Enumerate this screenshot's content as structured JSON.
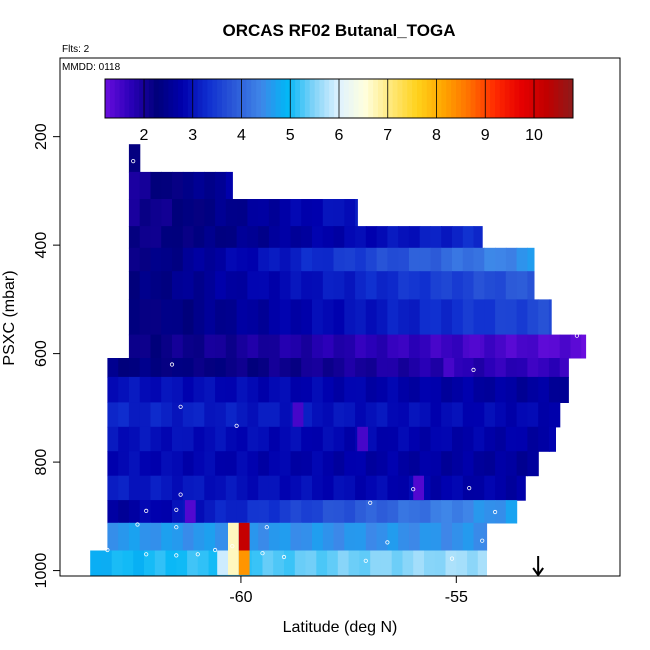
{
  "chart_data": {
    "type": "heatmap",
    "title": "ORCAS RF02 Butanal_TOGA",
    "flights_label": "Flts: 2",
    "date_label": "MMDD: 0118",
    "xlabel": "Latitude (deg N)",
    "ylabel": "PSXC (mbar)",
    "xlim": [
      -64.2,
      -51.2
    ],
    "ylim": [
      1010,
      55
    ],
    "x_ticks": [
      -60,
      -55
    ],
    "y_ticks": [
      200,
      400,
      600,
      800,
      1000
    ],
    "colorbar": {
      "ticks": [
        2,
        3,
        4,
        5,
        6,
        7,
        8,
        9,
        10
      ],
      "range": [
        1.2,
        10.8
      ],
      "colors": [
        "#6a0dde",
        "#2a00b8",
        "#00007a",
        "#0000ae",
        "#1030d0",
        "#2c5ad8",
        "#3f86e8",
        "#00b6f6",
        "#7ed2f8",
        "#dff2ff",
        "#ffffde",
        "#ffe87a",
        "#ffd21c",
        "#ffa600",
        "#ff7000",
        "#ff2a00",
        "#e60000",
        "#c00000",
        "#8e1a1a"
      ]
    },
    "grid": {
      "lat_start": -62.6,
      "lat_end": -52.0,
      "lat_step": 0.25,
      "pressure_bands": [
        {
          "p_top": 214,
          "p_bot": 265,
          "lat_min": -62.6,
          "lat_max": -62.35,
          "v0": 2.1,
          "v1": 2.1
        },
        {
          "p_top": 265,
          "p_bot": 315,
          "lat_min": -62.6,
          "lat_max": -60.2,
          "v0": 2.0,
          "v1": 2.7
        },
        {
          "p_top": 315,
          "p_bot": 365,
          "lat_min": -62.6,
          "lat_max": -57.3,
          "v0": 2.0,
          "v1": 3.1
        },
        {
          "p_top": 365,
          "p_bot": 405,
          "lat_min": -62.6,
          "lat_max": -54.4,
          "v0": 2.1,
          "v1": 3.3
        },
        {
          "p_top": 405,
          "p_bot": 448,
          "lat_min": -62.6,
          "lat_max": -53.2,
          "v0": 2.2,
          "v1": 4.6
        },
        {
          "p_top": 448,
          "p_bot": 500,
          "lat_min": -62.6,
          "lat_max": -53.2,
          "v0": 2.3,
          "v1": 3.9
        },
        {
          "p_top": 500,
          "p_bot": 565,
          "lat_min": -62.6,
          "lat_max": -52.8,
          "v0": 2.2,
          "v1": 3.7
        },
        {
          "p_top": 565,
          "p_bot": 608,
          "lat_min": -62.6,
          "lat_max": -52.0,
          "v0": 2.2,
          "v1": 1.3
        },
        {
          "p_top": 608,
          "p_bot": 643,
          "lat_min": -63.1,
          "lat_max": -52.4,
          "v0": 2.4,
          "v1": 1.6
        },
        {
          "p_top": 643,
          "p_bot": 690,
          "lat_min": -63.1,
          "lat_max": -52.4,
          "v0": 3.0,
          "v1": 2.6
        },
        {
          "p_top": 690,
          "p_bot": 735,
          "lat_min": -63.1,
          "lat_max": -52.6,
          "v0": 3.2,
          "v1": 2.8
        },
        {
          "p_top": 735,
          "p_bot": 780,
          "lat_min": -63.1,
          "lat_max": -52.7,
          "v0": 3.0,
          "v1": 2.7
        },
        {
          "p_top": 780,
          "p_bot": 825,
          "lat_min": -63.1,
          "lat_max": -53.1,
          "v0": 2.9,
          "v1": 2.6
        },
        {
          "p_top": 825,
          "p_bot": 870,
          "lat_min": -63.1,
          "lat_max": -53.4,
          "v0": 3.1,
          "v1": 2.7
        },
        {
          "p_top": 870,
          "p_bot": 912,
          "lat_min": -63.1,
          "lat_max": -53.6,
          "v0": 2.6,
          "v1": 4.7
        },
        {
          "p_top": 912,
          "p_bot": 963,
          "lat_min": -63.1,
          "lat_max": -54.3,
          "v0": 4.6,
          "v1": 4.5
        },
        {
          "p_top": 963,
          "p_bot": 1008,
          "lat_min": -63.5,
          "lat_max": -54.3,
          "v0": 4.9,
          "v1": 5.7
        }
      ],
      "highlights": [
        {
          "lat": -60.3,
          "p_top": 912,
          "p_bot": 1008,
          "value": 6.7
        },
        {
          "lat": -60.05,
          "p_top": 963,
          "p_bot": 1008,
          "value": 8.3
        },
        {
          "lat": -60.05,
          "p_top": 912,
          "p_bot": 963,
          "value": 10.2
        },
        {
          "lat": -60.55,
          "p_top": 963,
          "p_bot": 1008,
          "value": 5.9
        },
        {
          "lat": -61.3,
          "p_top": 870,
          "p_bot": 912,
          "value": 1.4
        },
        {
          "lat": -54.7,
          "p_top": 565,
          "p_bot": 608,
          "value": 1.4
        },
        {
          "lat": -55.3,
          "p_top": 608,
          "p_bot": 643,
          "value": 1.5
        },
        {
          "lat": -56.0,
          "p_top": 825,
          "p_bot": 870,
          "value": 1.4
        },
        {
          "lat": -57.3,
          "p_top": 735,
          "p_bot": 780,
          "value": 1.5
        },
        {
          "lat": -58.8,
          "p_top": 690,
          "p_bot": 735,
          "value": 1.5
        }
      ]
    },
    "samples": [
      {
        "lat": -62.5,
        "p": 245
      },
      {
        "lat": -54.3,
        "p": 398
      },
      {
        "lat": -52.8,
        "p": 448
      },
      {
        "lat": -52.2,
        "p": 567
      },
      {
        "lat": -54.6,
        "p": 630
      },
      {
        "lat": -52.3,
        "p": 703
      },
      {
        "lat": -61.6,
        "p": 620
      },
      {
        "lat": -61.4,
        "p": 698
      },
      {
        "lat": -60.1,
        "p": 733
      },
      {
        "lat": -62.2,
        "p": 890
      },
      {
        "lat": -61.5,
        "p": 888
      },
      {
        "lat": -61.4,
        "p": 860
      },
      {
        "lat": -57.0,
        "p": 875
      },
      {
        "lat": -56.0,
        "p": 850
      },
      {
        "lat": -54.7,
        "p": 848
      },
      {
        "lat": -54.1,
        "p": 892
      },
      {
        "lat": -54.4,
        "p": 945
      },
      {
        "lat": -62.4,
        "p": 915
      },
      {
        "lat": -59.4,
        "p": 920
      },
      {
        "lat": -61.5,
        "p": 920
      },
      {
        "lat": -63.1,
        "p": 962
      },
      {
        "lat": -62.2,
        "p": 970
      },
      {
        "lat": -61.5,
        "p": 972
      },
      {
        "lat": -61.0,
        "p": 970
      },
      {
        "lat": -60.6,
        "p": 962
      },
      {
        "lat": -60.2,
        "p": 955
      },
      {
        "lat": -59.5,
        "p": 968
      },
      {
        "lat": -59.0,
        "p": 975
      },
      {
        "lat": -56.6,
        "p": 948
      },
      {
        "lat": -55.1,
        "p": 978
      },
      {
        "lat": -57.1,
        "p": 982
      }
    ],
    "arrow_lat": -53.1
  }
}
